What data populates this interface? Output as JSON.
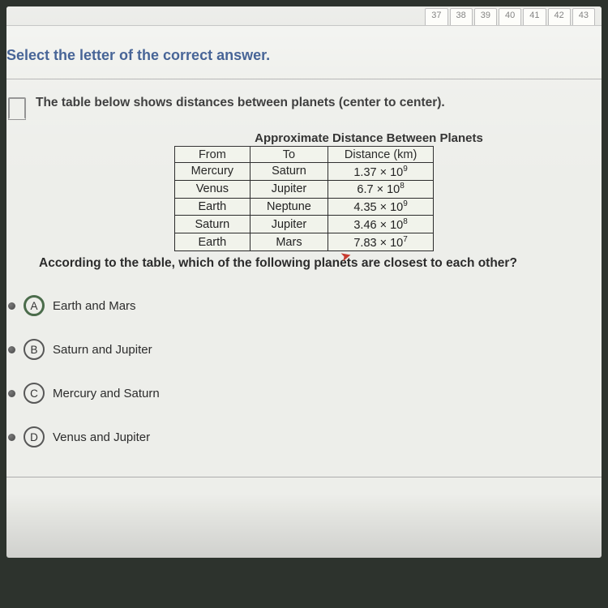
{
  "nav": {
    "tabs": [
      "37",
      "38",
      "39",
      "40",
      "41",
      "42",
      "43"
    ]
  },
  "instruction": "Select the letter of the correct answer.",
  "question": {
    "stem": "The table below shows distances between planets (center to center).",
    "followup": "According to the table, which of the following planets are closest to each other?"
  },
  "table": {
    "title": "Approximate Distance Between Planets",
    "headers": [
      "From",
      "To",
      "Distance (km)"
    ],
    "rows": [
      {
        "from": "Mercury",
        "to": "Saturn",
        "coef": "1.37",
        "exp": "9"
      },
      {
        "from": "Venus",
        "to": "Jupiter",
        "coef": "6.7",
        "exp": "8"
      },
      {
        "from": "Earth",
        "to": "Neptune",
        "coef": "4.35",
        "exp": "9"
      },
      {
        "from": "Saturn",
        "to": "Jupiter",
        "coef": "3.46",
        "exp": "8"
      },
      {
        "from": "Earth",
        "to": "Mars",
        "coef": "7.83",
        "exp": "7"
      }
    ]
  },
  "options": {
    "a": {
      "letter": "A",
      "label": "Earth and Mars"
    },
    "b": {
      "letter": "B",
      "label": "Saturn and Jupiter"
    },
    "c": {
      "letter": "C",
      "label": "Mercury and Saturn"
    },
    "d": {
      "letter": "D",
      "label": "Venus and Jupiter"
    }
  },
  "selected": "a",
  "colors": {
    "instruction": "#1a3d7a",
    "cursor": "#c43a2f",
    "screen_bg": "#e8e9e5"
  }
}
